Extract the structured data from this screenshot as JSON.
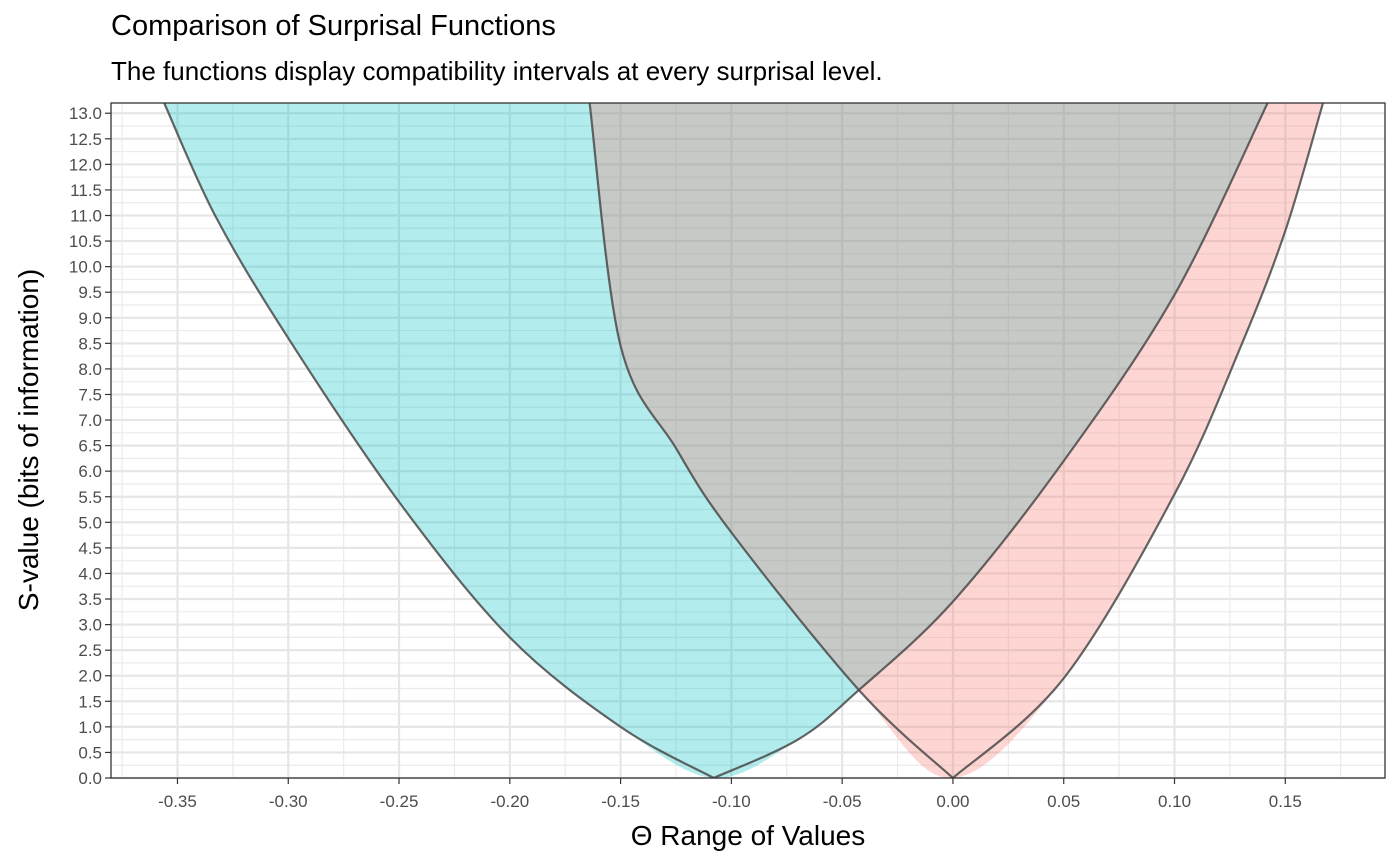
{
  "title": "Comparison of Surprisal Functions",
  "subtitle": "The functions display compatibility intervals at every surprisal level.",
  "chart_data": {
    "type": "area",
    "title": "Comparison of Surprisal Functions",
    "subtitle": "The functions display compatibility intervals at every surprisal level.",
    "xlabel": "Θ Range of Values",
    "ylabel": "S-value (bits of information)",
    "xlim": [
      -0.38,
      0.195
    ],
    "ylim": [
      0,
      13.2
    ],
    "x_ticks": [
      "-0.35",
      "-0.30",
      "-0.25",
      "-0.20",
      "-0.15",
      "-0.10",
      "-0.05",
      "0.00",
      "0.05",
      "0.10",
      "0.15"
    ],
    "y_ticks": [
      "0.0",
      "0.5",
      "1.0",
      "1.5",
      "2.0",
      "2.5",
      "3.0",
      "3.5",
      "4.0",
      "4.5",
      "5.0",
      "5.5",
      "6.0",
      "6.5",
      "7.0",
      "7.5",
      "8.0",
      "8.5",
      "9.0",
      "9.5",
      "10.0",
      "10.5",
      "11.0",
      "11.5",
      "12.0",
      "12.5",
      "13.0"
    ],
    "grid": true,
    "legend": "none",
    "series": [
      {
        "center": -0.108,
        "color": "#00BFC4",
        "left": [
          [
            -0.108,
            0
          ],
          [
            -0.15,
            1.0
          ],
          [
            -0.2,
            2.75
          ],
          [
            -0.25,
            5.4
          ],
          [
            -0.3,
            8.6
          ],
          [
            -0.333,
            11.0
          ],
          [
            -0.356,
            13.2
          ]
        ],
        "right": [
          [
            -0.108,
            0
          ],
          [
            -0.07,
            0.75
          ],
          [
            -0.043,
            1.7
          ],
          [
            0.0,
            3.45
          ],
          [
            0.05,
            6.2
          ],
          [
            0.1,
            9.45
          ],
          [
            0.142,
            13.2
          ]
        ]
      },
      {
        "center": 0.0,
        "color": "#F8766D",
        "left": [
          [
            0.0,
            0
          ],
          [
            -0.042,
            1.7
          ],
          [
            -0.1,
            4.8
          ],
          [
            -0.125,
            6.45
          ],
          [
            -0.15,
            8.45
          ],
          [
            -0.164,
            13.2
          ]
        ],
        "right": [
          [
            0.0,
            0
          ],
          [
            0.05,
            1.95
          ],
          [
            0.1,
            5.55
          ],
          [
            0.13,
            8.45
          ],
          [
            0.15,
            10.7
          ],
          [
            0.167,
            13.2
          ]
        ]
      }
    ]
  }
}
